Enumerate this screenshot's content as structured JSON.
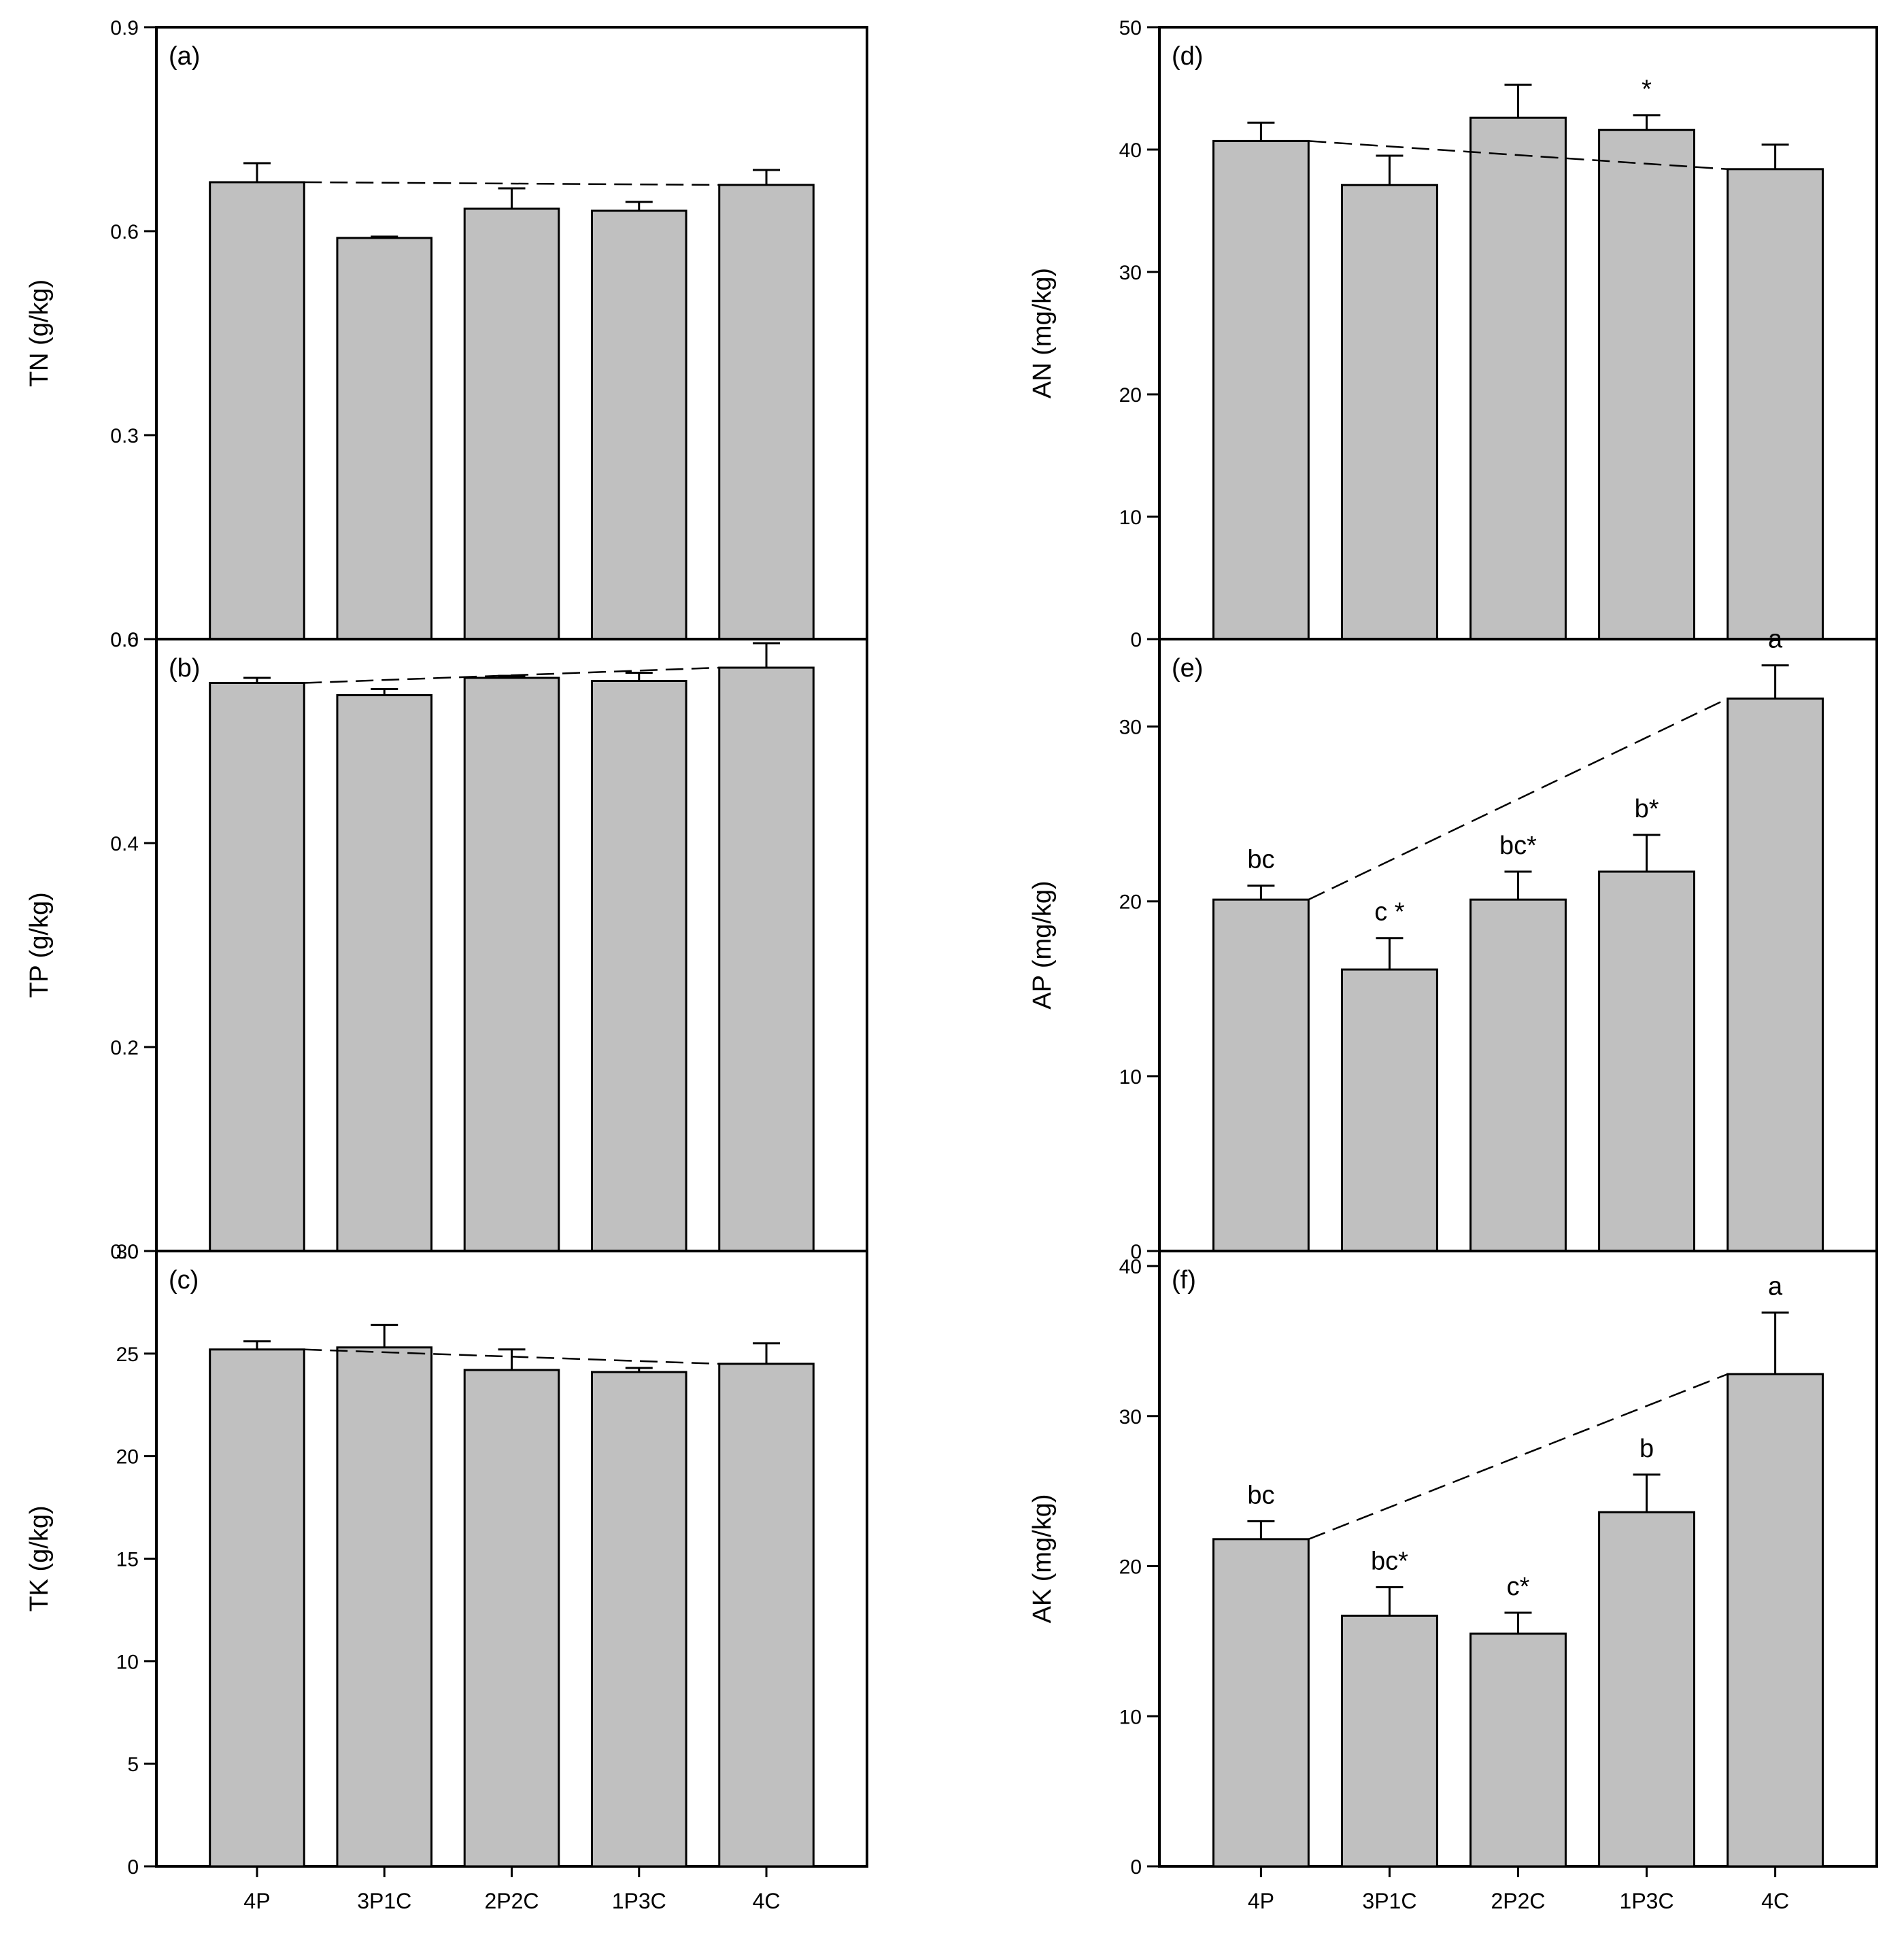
{
  "colors": {
    "bar_fill": "#c0c0c0",
    "bar_stroke": "#000000",
    "axis": "#000000",
    "background": "#ffffff"
  },
  "chart_data": [
    {
      "id": "a",
      "type": "bar",
      "panel_label": "(a)",
      "ylabel": "TN (g/kg)",
      "ylim": [
        0,
        0.9
      ],
      "yticks": [
        "0.0",
        "0.3",
        "0.6",
        "0.9"
      ],
      "categories": [
        "4P",
        "3P1C",
        "2P2C",
        "1P3C",
        "4C"
      ],
      "values": [
        0.672,
        0.59,
        0.633,
        0.63,
        0.668
      ],
      "errors": [
        0.028,
        0.002,
        0.03,
        0.013,
        0.022
      ],
      "labels": [
        "",
        "",
        "",
        "",
        ""
      ],
      "trend": [
        0.672,
        0.668
      ]
    },
    {
      "id": "b",
      "type": "bar",
      "panel_label": "(b)",
      "ylabel": "TP (g/kg)",
      "ylim": [
        0,
        0.6
      ],
      "yticks": [
        "0.0",
        "0.2",
        "0.4",
        "0.6"
      ],
      "categories": [
        "4P",
        "3P1C",
        "2P2C",
        "1P3C",
        "4C"
      ],
      "values": [
        0.557,
        0.545,
        0.562,
        0.559,
        0.572
      ],
      "errors": [
        0.005,
        0.006,
        0.002,
        0.008,
        0.024
      ],
      "labels": [
        "",
        "",
        "",
        "",
        ""
      ],
      "trend": [
        0.557,
        0.572
      ]
    },
    {
      "id": "c",
      "type": "bar",
      "panel_label": "(c)",
      "ylabel": "TK (g/kg)",
      "ylim": [
        0,
        30
      ],
      "yticks": [
        "0",
        "5",
        "10",
        "15",
        "20",
        "25",
        "30"
      ],
      "categories": [
        "4P",
        "3P1C",
        "2P2C",
        "1P3C",
        "4C"
      ],
      "values": [
        25.2,
        25.3,
        24.2,
        24.1,
        24.5
      ],
      "errors": [
        0.4,
        1.1,
        1.0,
        0.2,
        1.0
      ],
      "labels": [
        "",
        "",
        "",
        "",
        ""
      ],
      "trend": [
        25.2,
        24.5
      ]
    },
    {
      "id": "d",
      "type": "bar",
      "panel_label": "(d)",
      "ylabel": "AN (mg/kg)",
      "ylim": [
        0,
        50
      ],
      "yticks": [
        "0",
        "10",
        "20",
        "30",
        "40",
        "50"
      ],
      "categories": [
        "4P",
        "3P1C",
        "2P2C",
        "1P3C",
        "4C"
      ],
      "values": [
        40.7,
        37.1,
        42.6,
        41.6,
        38.4
      ],
      "errors": [
        1.5,
        2.4,
        2.7,
        1.2,
        2.0
      ],
      "labels": [
        "",
        "",
        "",
        "*",
        ""
      ],
      "trend": [
        40.7,
        38.4
      ]
    },
    {
      "id": "e",
      "type": "bar",
      "panel_label": "(e)",
      "ylabel": "AP (mg/kg)",
      "ylim": [
        0,
        35
      ],
      "yticks": [
        "0",
        "10",
        "20",
        "30"
      ],
      "categories": [
        "4P",
        "3P1C",
        "2P2C",
        "1P3C",
        "4C"
      ],
      "values": [
        20.1,
        16.1,
        20.1,
        21.7,
        31.6
      ],
      "errors": [
        0.8,
        1.8,
        1.6,
        2.1,
        1.9
      ],
      "labels": [
        "bc",
        "c *",
        "bc*",
        "b*",
        "a"
      ],
      "trend": [
        20.1,
        31.6
      ]
    },
    {
      "id": "f",
      "type": "bar",
      "panel_label": "(f)",
      "ylabel": "AK (mg/kg)",
      "ylim": [
        0,
        41
      ],
      "yticks": [
        "0",
        "10",
        "20",
        "30",
        "40"
      ],
      "categories": [
        "4P",
        "3P1C",
        "2P2C",
        "1P3C",
        "4C"
      ],
      "values": [
        21.8,
        16.7,
        15.5,
        23.6,
        32.8
      ],
      "errors": [
        1.2,
        1.9,
        1.4,
        2.5,
        4.1
      ],
      "labels": [
        "bc",
        "bc*",
        "c*",
        "b",
        "a"
      ],
      "trend": [
        21.8,
        32.8
      ]
    }
  ]
}
